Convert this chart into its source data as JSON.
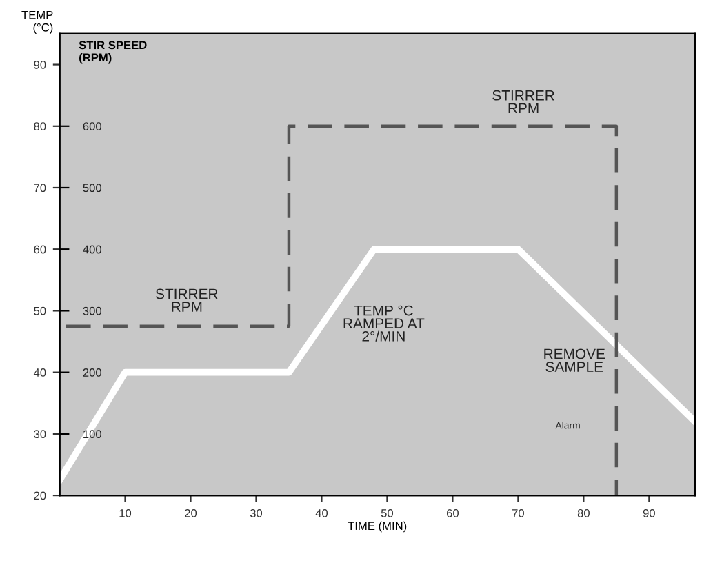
{
  "chart_data": {
    "type": "line",
    "xlabel": "TIME (MIN)",
    "ylabel": "TEMP\n(°C)",
    "y2label": "STIR SPEED\n(RPM)",
    "xlim": [
      0,
      97
    ],
    "xticks": [
      10,
      20,
      30,
      40,
      50,
      60,
      70,
      80,
      90
    ],
    "ylim": [
      20,
      95
    ],
    "yticks": [
      20,
      30,
      40,
      50,
      60,
      70,
      80,
      90
    ],
    "y2lim": [
      0,
      750
    ],
    "y2ticks": [
      100,
      200,
      300,
      400,
      500,
      600
    ],
    "grid": false,
    "legend": false,
    "series": [
      {
        "color": "#ffffff",
        "line_style": "solid",
        "x": [
          0,
          10,
          35,
          48,
          70,
          97
        ],
        "values": [
          22.5,
          40,
          40,
          60,
          60,
          32
        ]
      },
      {
        "axis": "y2",
        "color": "#555555",
        "line_style": "dashed",
        "x": [
          1,
          35,
          35,
          85,
          85
        ],
        "values": [
          275,
          275,
          600,
          600,
          0
        ]
      }
    ],
    "annotations": [
      "STIRRER\nRPM",
      "STIRRER\nRPM",
      "TEMP °C\nRAMPED AT\n2°/MIN",
      "REMOVE\nSAMPLE",
      "Alarm"
    ]
  }
}
